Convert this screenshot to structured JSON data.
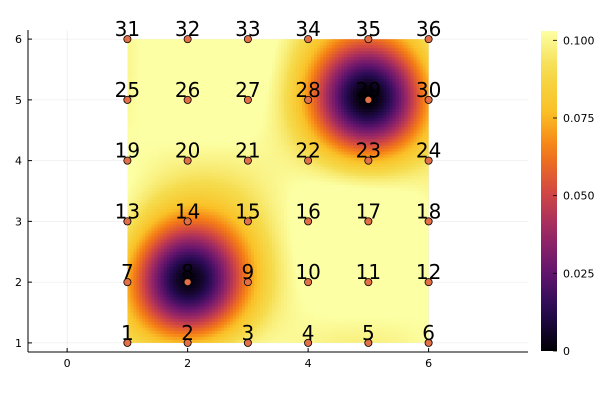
{
  "chart_data": {
    "type": "heatmap",
    "title": "",
    "xlabel": "",
    "ylabel": "",
    "xlim": [
      -0.65,
      7.65
    ],
    "ylim": [
      0.85,
      6.15
    ],
    "grid": true,
    "x_ticks": [
      "0",
      "2",
      "4",
      "6"
    ],
    "y_ticks": [
      "1",
      "2",
      "3",
      "4",
      "5",
      "6"
    ],
    "heatmap": {
      "x_range": [
        1,
        6
      ],
      "y_range": [
        1,
        6
      ],
      "value_range": [
        0,
        0.103
      ],
      "description": "field value near zero at wells (2,2) and (5,5), rising to ~0.10 elsewhere",
      "wells": [
        {
          "x": 2,
          "y": 2,
          "value": 0
        },
        {
          "x": 5,
          "y": 5,
          "value": 0
        }
      ]
    },
    "colorbar": {
      "colormap": "inferno",
      "ticks": [
        "0",
        "0.025",
        "0.050",
        "0.075",
        "0.100"
      ],
      "tick_values": [
        0,
        0.025,
        0.05,
        0.075,
        0.1
      ],
      "max": 0.103
    },
    "scatter": {
      "marker_color": "#e26f46",
      "points": [
        {
          "x": 1,
          "y": 1,
          "label": "1"
        },
        {
          "x": 2,
          "y": 1,
          "label": "2"
        },
        {
          "x": 3,
          "y": 1,
          "label": "3"
        },
        {
          "x": 4,
          "y": 1,
          "label": "4"
        },
        {
          "x": 5,
          "y": 1,
          "label": "5"
        },
        {
          "x": 6,
          "y": 1,
          "label": "6"
        },
        {
          "x": 1,
          "y": 2,
          "label": "7"
        },
        {
          "x": 2,
          "y": 2,
          "label": "8"
        },
        {
          "x": 3,
          "y": 2,
          "label": "9"
        },
        {
          "x": 4,
          "y": 2,
          "label": "10"
        },
        {
          "x": 5,
          "y": 2,
          "label": "11"
        },
        {
          "x": 6,
          "y": 2,
          "label": "12"
        },
        {
          "x": 1,
          "y": 3,
          "label": "13"
        },
        {
          "x": 2,
          "y": 3,
          "label": "14"
        },
        {
          "x": 3,
          "y": 3,
          "label": "15"
        },
        {
          "x": 4,
          "y": 3,
          "label": "16"
        },
        {
          "x": 5,
          "y": 3,
          "label": "17"
        },
        {
          "x": 6,
          "y": 3,
          "label": "18"
        },
        {
          "x": 1,
          "y": 4,
          "label": "19"
        },
        {
          "x": 2,
          "y": 4,
          "label": "20"
        },
        {
          "x": 3,
          "y": 4,
          "label": "21"
        },
        {
          "x": 4,
          "y": 4,
          "label": "22"
        },
        {
          "x": 5,
          "y": 4,
          "label": "23"
        },
        {
          "x": 6,
          "y": 4,
          "label": "24"
        },
        {
          "x": 1,
          "y": 5,
          "label": "25"
        },
        {
          "x": 2,
          "y": 5,
          "label": "26"
        },
        {
          "x": 3,
          "y": 5,
          "label": "27"
        },
        {
          "x": 4,
          "y": 5,
          "label": "28"
        },
        {
          "x": 5,
          "y": 5,
          "label": "29"
        },
        {
          "x": 6,
          "y": 5,
          "label": "30"
        },
        {
          "x": 1,
          "y": 6,
          "label": "31"
        },
        {
          "x": 2,
          "y": 6,
          "label": "32"
        },
        {
          "x": 3,
          "y": 6,
          "label": "33"
        },
        {
          "x": 4,
          "y": 6,
          "label": "34"
        },
        {
          "x": 5,
          "y": 6,
          "label": "35"
        },
        {
          "x": 6,
          "y": 6,
          "label": "36"
        }
      ]
    }
  }
}
